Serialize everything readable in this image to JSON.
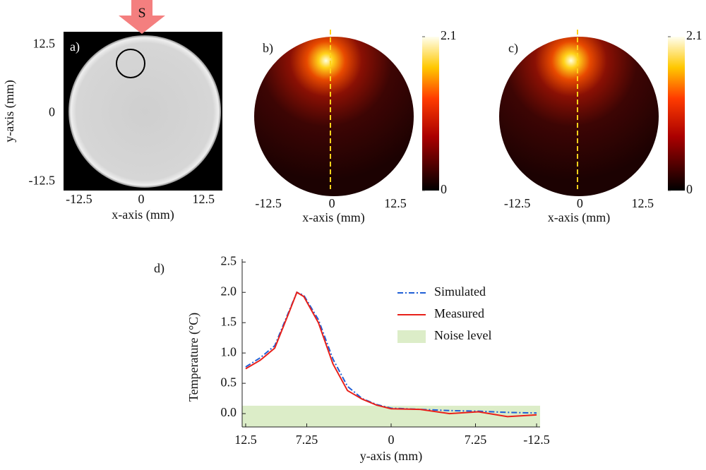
{
  "chart_data": [
    {
      "type": "image",
      "panel_label": "a)",
      "arrow_label": "S",
      "xlabel": "x-axis (mm)",
      "ylabel": "y-axis (mm)",
      "xlim": [
        -15.6,
        16.3
      ],
      "ylim": [
        -14.1,
        14.9
      ],
      "xticks": [
        -12.5,
        0,
        12.5
      ],
      "yticks": [
        -12.5,
        0,
        12.5
      ]
    },
    {
      "type": "heatmap",
      "panel_label": "b)",
      "xlabel": "x-axis (mm)",
      "xlim": [
        -15.3,
        15.97
      ],
      "xticks": [
        -12.5,
        0,
        12.5
      ],
      "colorbar_lim": [
        0,
        2.1
      ],
      "colorbar_ticks": [
        0,
        2.1
      ]
    },
    {
      "type": "heatmap",
      "panel_label": "c)",
      "xlabel": "x-axis (mm)",
      "xlim": [
        -16.1,
        15.7
      ],
      "xticks": [
        -12.5,
        0,
        12.5
      ],
      "colorbar_lim": [
        0,
        2.1
      ],
      "colorbar_ticks": [
        0,
        2.1
      ]
    },
    {
      "type": "line",
      "panel_label": "d)",
      "xlabel": "y-axis (mm)",
      "ylabel": "Temperature (°C)",
      "xlim": [
        12.8,
        -12.8
      ],
      "ylim": [
        -0.22,
        2.55
      ],
      "xticks": [
        12.5,
        7.25,
        0,
        {
          "value": -7.25,
          "label": "7.25"
        },
        -12.5
      ],
      "yticks": [
        {
          "value": 0,
          "label": "0.0"
        },
        0.5,
        {
          "value": 1,
          "label": "1.0"
        },
        1.5,
        {
          "value": 2,
          "label": "2.0"
        },
        2.5
      ],
      "x": [
        12.5,
        11.25,
        10,
        8.75,
        8.1,
        7.5,
        6.25,
        5,
        3.75,
        2.5,
        1.25,
        0,
        -2.5,
        -5,
        -7.5,
        -10,
        -12.5
      ],
      "series": [
        {
          "name": "Simulated",
          "color": "#1f5fd6",
          "style": "dashdot",
          "values": [
            0.77,
            0.92,
            1.12,
            1.7,
            2.0,
            1.95,
            1.55,
            0.9,
            0.45,
            0.25,
            0.15,
            0.09,
            0.07,
            0.05,
            0.04,
            0.02,
            0.01
          ]
        },
        {
          "name": "Measured",
          "color": "#e8201a",
          "style": "solid",
          "values": [
            0.74,
            0.88,
            1.08,
            1.68,
            2.0,
            1.93,
            1.5,
            0.82,
            0.38,
            0.24,
            0.14,
            0.08,
            0.07,
            0.0,
            0.03,
            -0.05,
            -0.02
          ]
        }
      ],
      "band": {
        "name": "Noise level",
        "color": "#dcedc8",
        "range": [
          -0.22,
          0.13
        ]
      }
    }
  ]
}
